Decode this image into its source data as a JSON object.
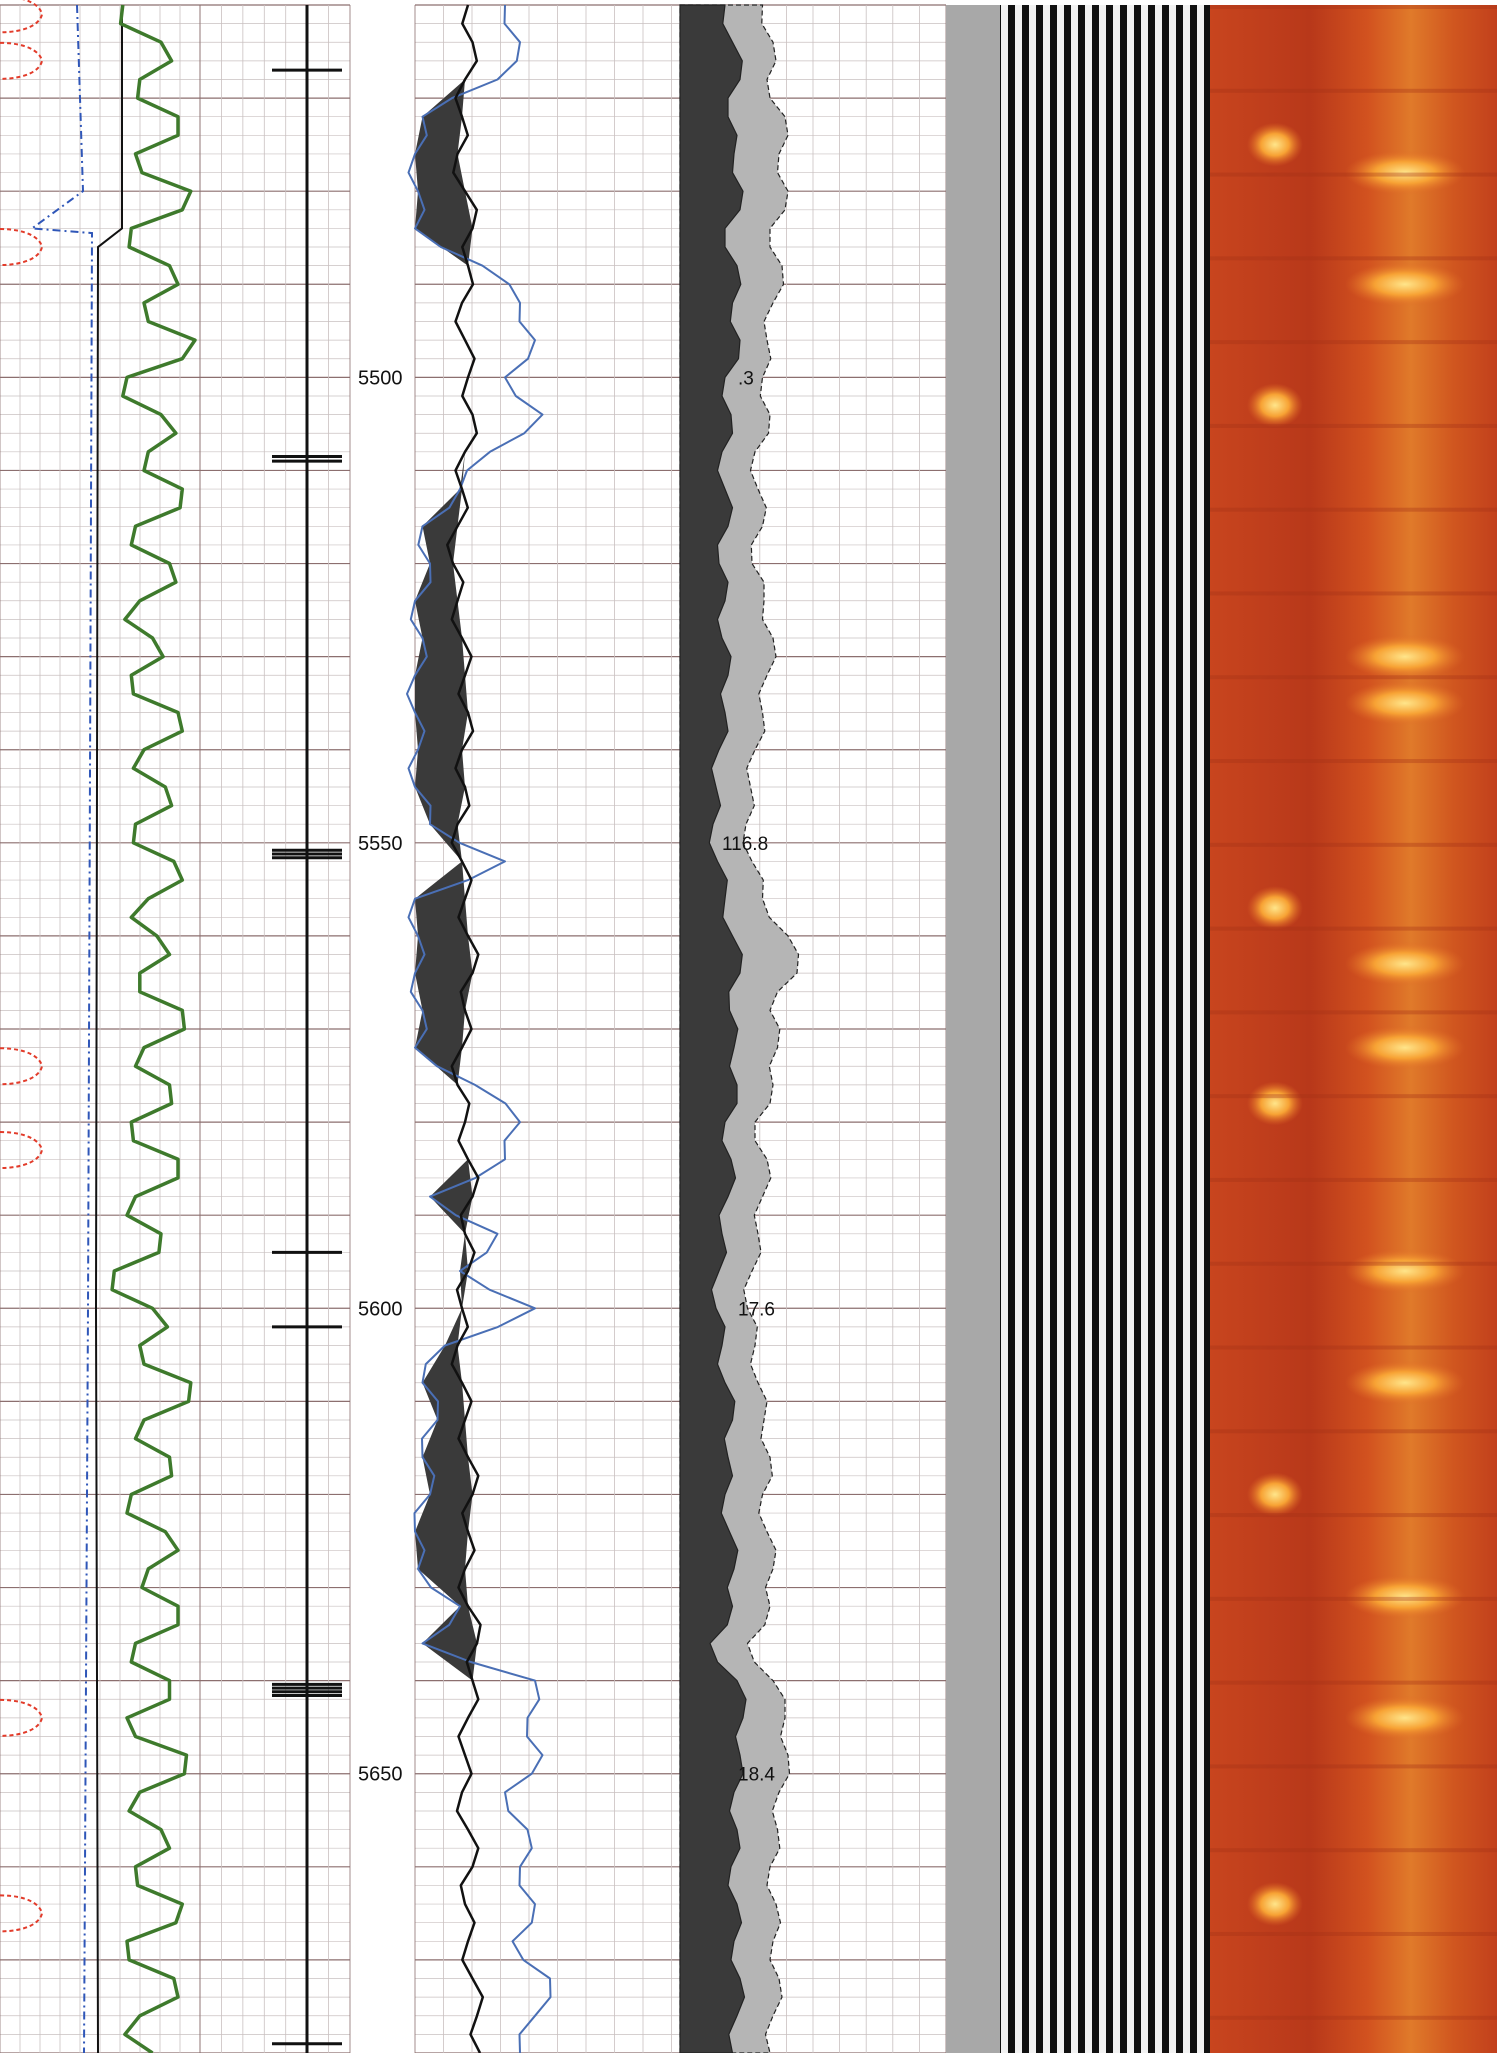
{
  "chart_data": {
    "type": "well-log",
    "depth_range": [
      5460,
      5680
    ],
    "depth_labels": [
      "5500",
      "5550",
      "5600",
      "5650"
    ],
    "depth_values": [
      5500,
      5550,
      5600,
      5650
    ],
    "temperature_labels": [
      {
        "depth": 5500,
        "text": ".3"
      },
      {
        "depth": 5550,
        "text": "116.8"
      },
      {
        "depth": 5600,
        "text": "17.6"
      },
      {
        "depth": 5650,
        "text": "18.4"
      }
    ],
    "fracture_depths": [
      5467,
      5508.5,
      5509,
      5550.8,
      5551.2,
      5551.6,
      5594,
      5602,
      5640.4,
      5640.8,
      5641.2,
      5641.6,
      5679
    ],
    "gamma_ray": {
      "depths": [
        5460,
        5464,
        5468,
        5472,
        5476,
        5480,
        5484,
        5488,
        5492,
        5496,
        5500,
        5504,
        5508,
        5512,
        5516,
        5520,
        5524,
        5528,
        5532,
        5536,
        5540,
        5544,
        5548,
        5552,
        5556,
        5560,
        5564,
        5568,
        5572,
        5576,
        5580,
        5584,
        5588,
        5592,
        5596,
        5600,
        5604,
        5608,
        5612,
        5616,
        5620,
        5624,
        5628,
        5632,
        5636,
        5640,
        5644,
        5648,
        5652,
        5656,
        5660,
        5664,
        5668,
        5672,
        5676,
        5680
      ],
      "values": [
        0.15,
        0.6,
        0.35,
        0.8,
        0.3,
        0.95,
        0.25,
        0.7,
        0.4,
        1.0,
        0.2,
        0.6,
        0.45,
        0.85,
        0.3,
        0.7,
        0.35,
        0.5,
        0.25,
        0.8,
        0.4,
        0.65,
        0.3,
        0.75,
        0.45,
        0.55,
        0.35,
        0.85,
        0.4,
        0.7,
        0.25,
        0.8,
        0.3,
        0.6,
        0.05,
        0.5,
        0.35,
        0.95,
        0.4,
        0.7,
        0.25,
        0.65,
        0.45,
        0.8,
        0.3,
        0.7,
        0.2,
        0.9,
        0.35,
        0.6,
        0.3,
        0.85,
        0.2,
        0.75,
        0.35,
        0.5
      ]
    },
    "porosity_black": {
      "depths": [
        5460,
        5464,
        5468,
        5472,
        5476,
        5480,
        5484,
        5488,
        5492,
        5496,
        5500,
        5504,
        5508,
        5512,
        5516,
        5520,
        5524,
        5528,
        5532,
        5536,
        5540,
        5544,
        5548,
        5552,
        5556,
        5560,
        5564,
        5568,
        5572,
        5576,
        5580,
        5584,
        5588,
        5592,
        5596,
        5600,
        5604,
        5608,
        5612,
        5616,
        5620,
        5624,
        5628,
        5632,
        5636,
        5640,
        5644,
        5648,
        5652,
        5656,
        5660,
        5664,
        5668,
        5672,
        5676,
        5680
      ],
      "values": [
        0.22,
        0.25,
        0.2,
        0.18,
        0.15,
        0.2,
        0.25,
        0.22,
        0.18,
        0.2,
        0.22,
        0.25,
        0.2,
        0.18,
        0.15,
        0.12,
        0.15,
        0.18,
        0.2,
        0.22,
        0.18,
        0.2,
        0.15,
        0.18,
        0.2,
        0.22,
        0.25,
        0.2,
        0.18,
        0.15,
        0.2,
        0.22,
        0.25,
        0.2,
        0.22,
        0.18,
        0.15,
        0.18,
        0.2,
        0.22,
        0.25,
        0.22,
        0.2,
        0.22,
        0.28,
        0.25,
        0.22,
        0.2,
        0.18,
        0.22,
        0.25,
        0.2,
        0.22,
        0.25,
        0.28,
        0.3
      ]
    },
    "porosity_blue": {
      "depths": [
        5460,
        5464,
        5468,
        5472,
        5476,
        5480,
        5484,
        5488,
        5492,
        5496,
        5500,
        5504,
        5508,
        5512,
        5516,
        5520,
        5524,
        5528,
        5532,
        5536,
        5540,
        5544,
        5548,
        5552,
        5556,
        5560,
        5564,
        5568,
        5572,
        5576,
        5580,
        5584,
        5588,
        5592,
        5596,
        5600,
        5604,
        5608,
        5612,
        5616,
        5620,
        5624,
        5628,
        5632,
        5636,
        5640,
        5644,
        5648,
        5652,
        5656,
        5660,
        5664,
        5668,
        5672,
        5676,
        5680
      ],
      "values": [
        0.6,
        0.7,
        0.55,
        0.05,
        0.0,
        0.02,
        0.0,
        0.45,
        0.7,
        0.8,
        0.6,
        0.85,
        0.5,
        0.3,
        0.05,
        0.1,
        0.0,
        0.05,
        0.0,
        0.0,
        0.02,
        0.0,
        0.1,
        0.6,
        0.0,
        0.02,
        0.0,
        0.05,
        0.0,
        0.4,
        0.7,
        0.6,
        0.1,
        0.55,
        0.3,
        0.8,
        0.2,
        0.05,
        0.15,
        0.05,
        0.1,
        0.0,
        0.02,
        0.3,
        0.05,
        0.8,
        0.75,
        0.85,
        0.6,
        0.75,
        0.7,
        0.8,
        0.65,
        0.9,
        0.8,
        0.7
      ]
    },
    "caliper_dark": {
      "depths": [
        5460,
        5464,
        5468,
        5472,
        5476,
        5480,
        5484,
        5488,
        5492,
        5496,
        5500,
        5504,
        5508,
        5512,
        5516,
        5520,
        5524,
        5528,
        5532,
        5536,
        5540,
        5544,
        5548,
        5552,
        5556,
        5560,
        5564,
        5568,
        5572,
        5576,
        5580,
        5584,
        5588,
        5592,
        5596,
        5600,
        5604,
        5608,
        5612,
        5616,
        5620,
        5624,
        5628,
        5632,
        5636,
        5640,
        5644,
        5648,
        5652,
        5656,
        5660,
        5664,
        5668,
        5672,
        5676,
        5680
      ],
      "values": [
        0.3,
        0.35,
        0.4,
        0.32,
        0.36,
        0.42,
        0.3,
        0.38,
        0.35,
        0.4,
        0.3,
        0.34,
        0.28,
        0.3,
        0.32,
        0.26,
        0.3,
        0.28,
        0.32,
        0.3,
        0.26,
        0.24,
        0.22,
        0.25,
        0.3,
        0.35,
        0.4,
        0.33,
        0.36,
        0.38,
        0.3,
        0.34,
        0.32,
        0.28,
        0.26,
        0.24,
        0.28,
        0.3,
        0.35,
        0.32,
        0.3,
        0.33,
        0.36,
        0.35,
        0.2,
        0.38,
        0.42,
        0.4,
        0.36,
        0.38,
        0.34,
        0.38,
        0.36,
        0.4,
        0.38,
        0.35
      ]
    },
    "caliper_light": {
      "depths": [
        5460,
        5464,
        5468,
        5472,
        5476,
        5480,
        5484,
        5488,
        5492,
        5496,
        5500,
        5504,
        5508,
        5512,
        5516,
        5520,
        5524,
        5528,
        5532,
        5536,
        5540,
        5544,
        5548,
        5552,
        5556,
        5560,
        5564,
        5568,
        5572,
        5576,
        5580,
        5584,
        5588,
        5592,
        5596,
        5600,
        5604,
        5608,
        5612,
        5616,
        5620,
        5624,
        5628,
        5632,
        5636,
        5640,
        5644,
        5648,
        5652,
        5656,
        5660,
        5664,
        5668,
        5672,
        5676,
        5680
      ],
      "values": [
        0.55,
        0.62,
        0.58,
        0.7,
        0.66,
        0.72,
        0.6,
        0.68,
        0.62,
        0.58,
        0.55,
        0.6,
        0.5,
        0.52,
        0.55,
        0.48,
        0.56,
        0.62,
        0.58,
        0.55,
        0.5,
        0.47,
        0.44,
        0.48,
        0.55,
        0.72,
        0.78,
        0.6,
        0.65,
        0.62,
        0.5,
        0.58,
        0.55,
        0.52,
        0.48,
        0.45,
        0.5,
        0.52,
        0.56,
        0.6,
        0.55,
        0.58,
        0.62,
        0.6,
        0.45,
        0.62,
        0.7,
        0.72,
        0.66,
        0.65,
        0.6,
        0.64,
        0.62,
        0.66,
        0.62,
        0.6
      ]
    },
    "bright_bands": [
      5475,
      5478,
      5490,
      5503,
      5530,
      5535,
      5557,
      5563,
      5572,
      5578,
      5596,
      5608,
      5620,
      5631,
      5644,
      5664
    ],
    "colors": {
      "grid_major": "#8c6f6f",
      "grid_minor": "#c9c0c0",
      "gamma": "#3e7a2c",
      "black_curve": "#111111",
      "blue_curve": "#4a6fb5",
      "red_curve": "#e23b2a",
      "dashed_blue": "#2f56b8",
      "fill_dark": "#3a3a3a",
      "fill_light": "#b5b5b5",
      "image_base": "#c8451e",
      "image_bright": "#ffd54a"
    }
  }
}
